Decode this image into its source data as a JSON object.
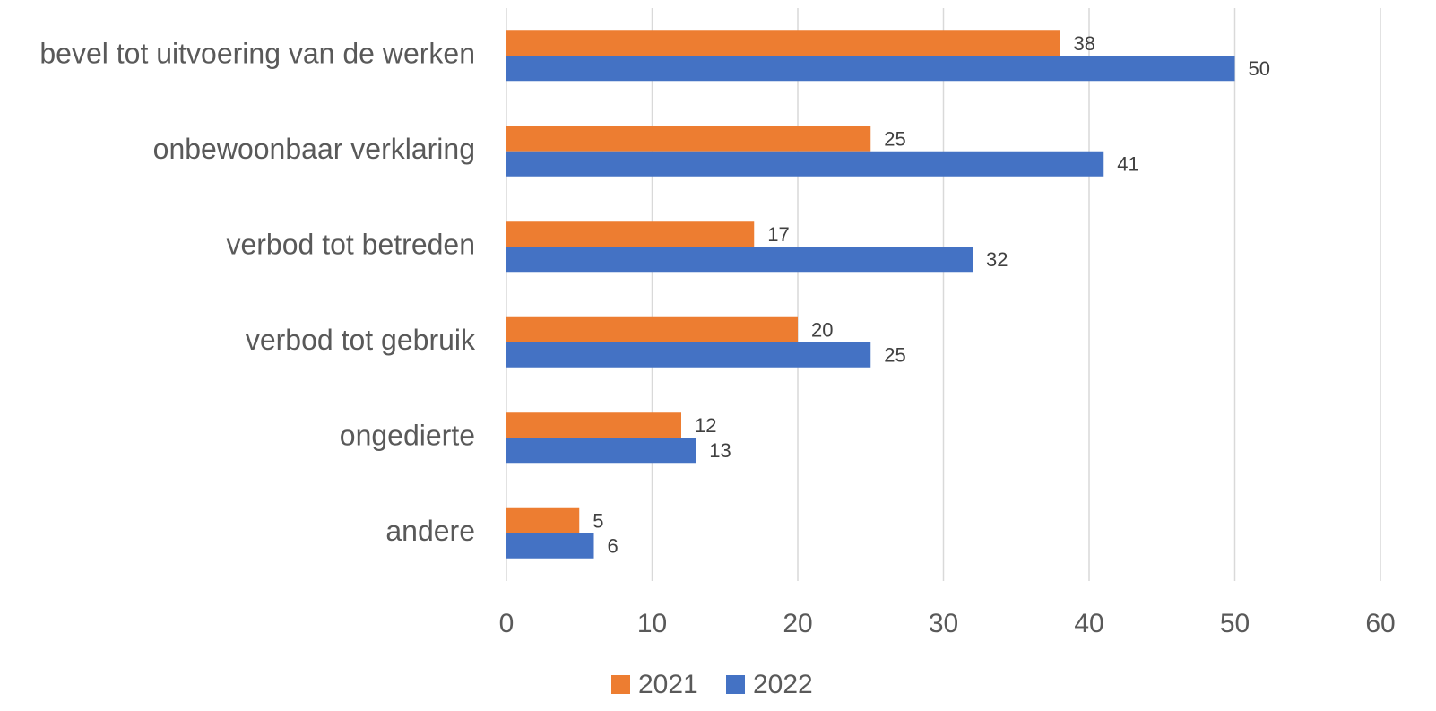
{
  "chart_data": {
    "type": "hbar",
    "categories": [
      "bevel tot uitvoering van de werken",
      "onbewoonbaar verklaring",
      "verbod tot betreden",
      "verbod tot gebruik",
      "ongedierte",
      "andere"
    ],
    "series": [
      {
        "name": "2021",
        "color": "#ed7d31",
        "values": [
          38,
          25,
          17,
          20,
          12,
          5
        ]
      },
      {
        "name": "2022",
        "color": "#4472c4",
        "values": [
          50,
          41,
          32,
          25,
          13,
          6
        ]
      }
    ],
    "xlim": [
      0,
      60
    ],
    "xticks": [
      0,
      10,
      20,
      30,
      40,
      50,
      60
    ],
    "grid": true,
    "legend": "bottom"
  }
}
